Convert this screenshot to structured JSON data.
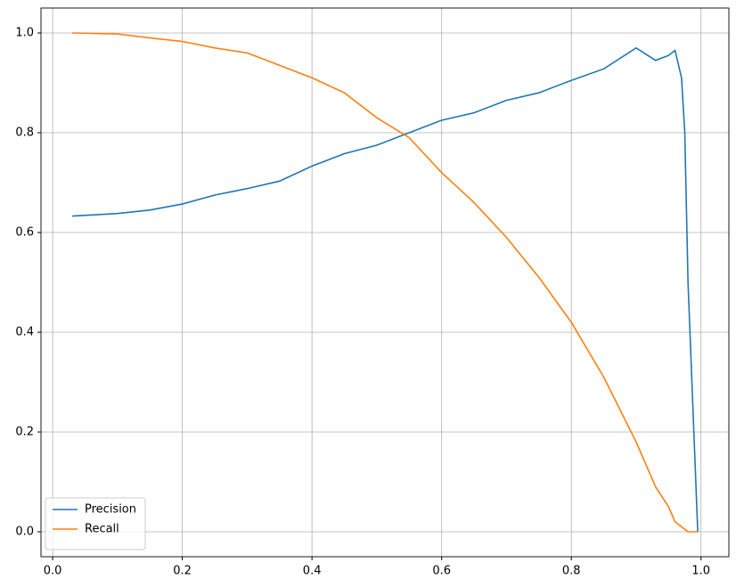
{
  "chart_data": {
    "type": "line",
    "x": [
      0.03,
      0.1,
      0.15,
      0.2,
      0.25,
      0.3,
      0.35,
      0.4,
      0.45,
      0.5,
      0.55,
      0.6,
      0.65,
      0.7,
      0.75,
      0.8,
      0.85,
      0.9,
      0.93,
      0.95,
      0.96,
      0.97,
      0.975,
      0.98,
      0.995
    ],
    "series": [
      {
        "name": "Precision",
        "color": "#1f77b4",
        "values": [
          0.633,
          0.638,
          0.645,
          0.657,
          0.675,
          0.688,
          0.703,
          0.733,
          0.758,
          0.775,
          0.8,
          0.825,
          0.84,
          0.865,
          0.88,
          0.905,
          0.928,
          0.97,
          0.945,
          0.955,
          0.965,
          0.91,
          0.8,
          0.5,
          0
        ]
      },
      {
        "name": "Recall",
        "color": "#ff7f0e",
        "values": [
          1,
          0.998,
          0.99,
          0.983,
          0.97,
          0.96,
          0.935,
          0.91,
          0.88,
          0.83,
          0.79,
          0.72,
          0.66,
          0.59,
          0.51,
          0.42,
          0.31,
          0.18,
          0.09,
          0.05,
          0.02,
          0.01,
          0.005,
          0,
          0
        ]
      }
    ],
    "xlim": [
      -0.018,
      1.043
    ],
    "ylim": [
      -0.05,
      1.05
    ],
    "xticks": [
      {
        "value": 0,
        "label": "0.0"
      },
      0.2,
      0.4,
      0.6,
      0.8,
      {
        "value": 1,
        "label": "1.0"
      }
    ],
    "yticks": [
      {
        "value": 0,
        "label": "0.0"
      },
      0.2,
      0.4,
      0.6,
      0.8,
      {
        "value": 1,
        "label": "1.0"
      }
    ],
    "grid": true,
    "legend": "lower left"
  }
}
